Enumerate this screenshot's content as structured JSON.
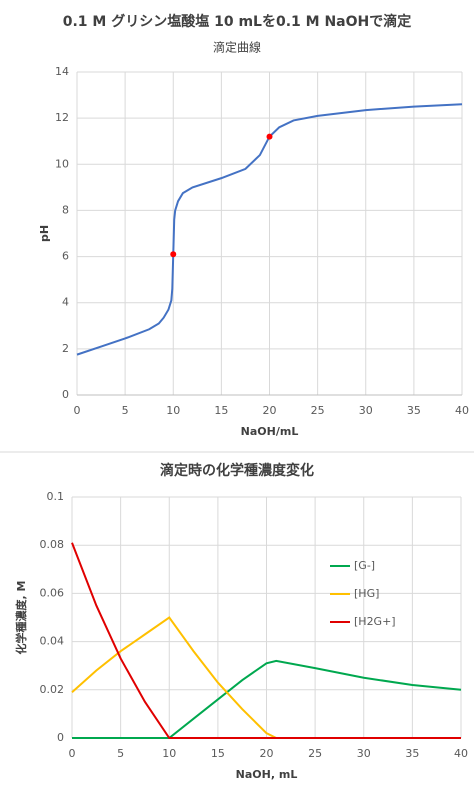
{
  "chart_data": [
    {
      "type": "line",
      "title": "0.1 M グリシン塩酸塩 10 mLを0.1 M NaOHで滴定",
      "subtitle": "滴定曲線",
      "x_label": "NaOH/mL",
      "y_label": "pH",
      "x": [
        0,
        2.5,
        5,
        7.5,
        8.5,
        9,
        9.5,
        9.8,
        9.9,
        10,
        10.1,
        10.2,
        10.5,
        11,
        12,
        15,
        17.5,
        19,
        20,
        21,
        22.5,
        25,
        30,
        35,
        40
      ],
      "values": [
        1.75,
        2.1,
        2.45,
        2.85,
        3.1,
        3.35,
        3.7,
        4.1,
        4.6,
        6.1,
        7.6,
        8.0,
        8.4,
        8.75,
        9.0,
        9.4,
        9.8,
        10.4,
        11.2,
        11.6,
        11.9,
        12.1,
        12.35,
        12.5,
        12.6
      ],
      "color": "#4472c4",
      "points": {
        "x": [
          10,
          20
        ],
        "values": [
          6.1,
          11.2
        ],
        "color": "#ff0000"
      },
      "xlim": [
        0,
        40
      ],
      "xticks": [
        0,
        5,
        10,
        15,
        20,
        25,
        30,
        35,
        40
      ],
      "ylim": [
        0,
        14
      ],
      "yticks": [
        0,
        2,
        4,
        6,
        8,
        10,
        12,
        14
      ],
      "grid": true
    },
    {
      "type": "line",
      "title": "滴定時の化学種濃度変化",
      "x_label": "NaOH, mL",
      "y_label": "化学種濃度, M",
      "x": [
        0,
        2.5,
        5,
        7.5,
        10,
        12.5,
        15,
        17.5,
        20,
        21,
        25,
        30,
        35,
        40
      ],
      "series": [
        {
          "name": "[G-]",
          "color": "#00a84f",
          "values": [
            0,
            0,
            0,
            0,
            0,
            0.008,
            0.016,
            0.024,
            0.031,
            0.032,
            0.029,
            0.025,
            0.022,
            0.02
          ]
        },
        {
          "name": "[HG]",
          "color": "#ffc000",
          "values": [
            0.019,
            0.028,
            0.036,
            0.043,
            0.05,
            0.036,
            0.023,
            0.012,
            0.002,
            0,
            0,
            0,
            0,
            0
          ]
        },
        {
          "name": "[H2G+]",
          "color": "#e00000",
          "values": [
            0.081,
            0.055,
            0.033,
            0.015,
            0,
            0,
            0,
            0,
            0,
            0,
            0,
            0,
            0,
            0
          ]
        }
      ],
      "xlim": [
        0,
        40
      ],
      "xticks": [
        0,
        5,
        10,
        15,
        20,
        25,
        30,
        35,
        40
      ],
      "ylim": [
        0,
        0.1
      ],
      "yticks": [
        0,
        0.02,
        0.04,
        0.06,
        0.08,
        0.1
      ],
      "grid": true,
      "legend": "right"
    }
  ]
}
